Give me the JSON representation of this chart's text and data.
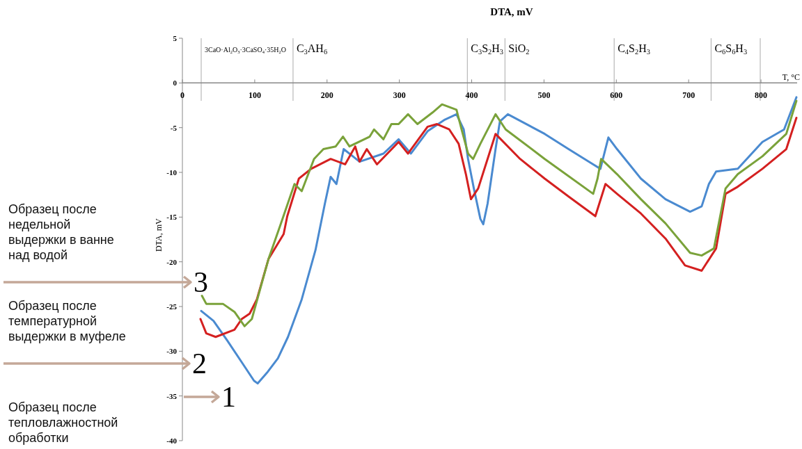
{
  "chart_data": {
    "type": "line",
    "title": "DTA, mV",
    "xlabel": "T, °C",
    "ylabel": "DTA, mV",
    "xlim": [
      0,
      850
    ],
    "xticks": [
      0,
      100,
      200,
      300,
      400,
      500,
      600,
      700,
      800
    ],
    "ylim": [
      -40,
      5
    ],
    "yticks": [
      5,
      0,
      -5,
      -10,
      -15,
      -20,
      -25,
      -30,
      -35,
      -40
    ],
    "grid": false,
    "marker": "none",
    "line_style": "solid",
    "ref_lines": [
      {
        "axis": "x",
        "value": 26,
        "label": "3CaO·Al$_{2}$O$_{3}$·3CaSO$_{4}$·35H$_{2}$O"
      },
      {
        "axis": "x",
        "value": 153,
        "label": "C$_{3}$AH$_{6}$"
      },
      {
        "axis": "x",
        "value": 394,
        "label": "C$_{3}$S$_{2}$H$_{3}$"
      },
      {
        "axis": "x",
        "value": 446,
        "label": "SiO$_{2}$"
      },
      {
        "axis": "x",
        "value": 597,
        "label": "C$_{4}$S$_{2}$H$_{3}$"
      },
      {
        "axis": "x",
        "value": 731,
        "label": "C$_{6}$S$_{6}$H$_{3}$"
      },
      {
        "axis": "x",
        "value": 799
      }
    ],
    "annotations": [
      "Образец после тепловлажностной обработки",
      "Образец после температурной выдержки в муфеле",
      "Образец после недельной выдержки в ванне над водой"
    ],
    "series": [
      {
        "name": "1",
        "color": "#4a8ad0",
        "x": [
          26,
          43,
          62,
          81,
          99,
          104,
          118,
          132,
          146,
          165,
          184,
          197,
          205,
          213,
          223,
          245,
          278,
          299,
          316,
          339,
          363,
          379,
          389,
          395,
          403,
          412,
          416,
          422,
          433,
          439,
          450,
          501,
          534,
          568,
          578,
          589,
          601,
          634,
          668,
          702,
          718,
          728,
          738,
          768,
          802,
          832,
          849
        ],
        "values": [
          -25.5,
          -26.6,
          -28.8,
          -31.1,
          -33.3,
          -33.6,
          -32.3,
          -30.8,
          -28.4,
          -24.2,
          -18.7,
          -13.5,
          -10.5,
          -11.3,
          -7.4,
          -8.8,
          -7.9,
          -6.3,
          -7.9,
          -5.4,
          -4.1,
          -3.5,
          -5.2,
          -8.5,
          -11.8,
          -15.2,
          -15.8,
          -13.5,
          -7.4,
          -4.3,
          -3.5,
          -5.7,
          -7.4,
          -9.1,
          -9.6,
          -6.1,
          -7.4,
          -10.7,
          -13.0,
          -14.4,
          -13.8,
          -11.3,
          -9.9,
          -9.6,
          -6.6,
          -5.2,
          -1.6
        ]
      },
      {
        "name": "2",
        "color": "#d42020",
        "x": [
          25,
          33,
          46,
          72,
          82,
          93,
          103,
          119,
          140,
          145,
          161,
          178,
          205,
          225,
          239,
          245,
          255,
          269,
          299,
          312,
          339,
          352,
          369,
          382,
          392,
          399,
          409,
          433,
          467,
          501,
          534,
          571,
          585,
          601,
          634,
          668,
          695,
          718,
          738,
          751,
          768,
          802,
          835,
          849
        ],
        "values": [
          -26.4,
          -28.0,
          -28.4,
          -27.6,
          -26.4,
          -25.8,
          -24.2,
          -19.7,
          -16.9,
          -14.9,
          -10.7,
          -9.6,
          -8.5,
          -9.1,
          -7.1,
          -8.8,
          -7.4,
          -9.1,
          -6.6,
          -7.9,
          -4.9,
          -4.6,
          -5.2,
          -6.8,
          -10.2,
          -13.0,
          -11.8,
          -5.7,
          -8.5,
          -10.7,
          -12.7,
          -14.9,
          -11.3,
          -12.4,
          -14.6,
          -17.4,
          -20.4,
          -21.0,
          -18.5,
          -12.4,
          -11.6,
          -9.6,
          -7.4,
          -3.9
        ]
      },
      {
        "name": "3",
        "color": "#7aa23a",
        "x": [
          27,
          33,
          56,
          72,
          86,
          96,
          119,
          135,
          155,
          165,
          182,
          195,
          212,
          222,
          231,
          259,
          265,
          278,
          289,
          299,
          312,
          325,
          346,
          359,
          379,
          386,
          395,
          402,
          412,
          433,
          447,
          501,
          568,
          574,
          579,
          601,
          634,
          668,
          702,
          718,
          735,
          751,
          768,
          802,
          835,
          849
        ],
        "values": [
          -23.8,
          -24.7,
          -24.7,
          -25.6,
          -27.2,
          -26.4,
          -19.7,
          -16.0,
          -11.3,
          -12.1,
          -8.5,
          -7.4,
          -7.1,
          -6.0,
          -7.1,
          -6.0,
          -5.2,
          -6.3,
          -4.6,
          -4.6,
          -3.5,
          -4.6,
          -3.3,
          -2.4,
          -3.0,
          -5.2,
          -7.9,
          -8.5,
          -6.8,
          -3.5,
          -5.2,
          -8.5,
          -12.4,
          -10.7,
          -8.5,
          -10.2,
          -13.0,
          -15.7,
          -19.0,
          -19.3,
          -18.5,
          -11.8,
          -10.2,
          -8.2,
          -5.7,
          -2.0
        ]
      }
    ]
  }
}
